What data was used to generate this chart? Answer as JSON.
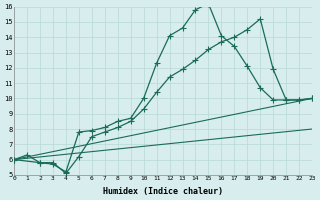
{
  "xlabel": "Humidex (Indice chaleur)",
  "bg_color": "#d8eeee",
  "grid_color": "#b8d8d8",
  "line_color": "#1a6b5a",
  "xlim": [
    0,
    23
  ],
  "ylim": [
    5,
    16
  ],
  "xticks": [
    0,
    1,
    2,
    3,
    4,
    5,
    6,
    7,
    8,
    9,
    10,
    11,
    12,
    13,
    14,
    15,
    16,
    17,
    18,
    19,
    20,
    21,
    22,
    23
  ],
  "yticks": [
    5,
    6,
    7,
    8,
    9,
    10,
    11,
    12,
    13,
    14,
    15,
    16
  ],
  "line1_x": [
    0,
    1,
    2,
    3,
    4,
    5,
    6,
    7,
    8,
    9,
    10,
    11,
    12,
    13,
    14,
    15,
    16,
    17,
    18,
    19,
    20,
    21,
    22,
    23
  ],
  "line1_y": [
    6.0,
    6.3,
    5.8,
    5.7,
    5.2,
    7.8,
    7.9,
    8.1,
    8.5,
    8.7,
    10.0,
    12.3,
    14.1,
    14.6,
    15.8,
    16.2,
    14.1,
    13.4,
    12.1,
    10.7,
    9.9,
    9.9,
    9.9,
    10.0
  ],
  "line2_x": [
    0,
    2,
    3,
    4,
    5,
    6,
    7,
    8,
    9,
    10,
    11,
    12,
    13,
    14,
    15,
    16,
    17,
    18,
    19,
    20,
    21,
    22,
    23
  ],
  "line2_y": [
    6.0,
    5.8,
    5.8,
    5.1,
    6.2,
    7.5,
    7.8,
    8.1,
    8.5,
    9.3,
    10.4,
    11.4,
    11.9,
    12.5,
    13.2,
    13.7,
    14.0,
    14.5,
    15.2,
    11.9,
    9.9,
    9.9,
    10.0
  ],
  "line3_x": [
    0,
    23
  ],
  "line3_y": [
    6.0,
    10.0
  ],
  "line4_x": [
    0,
    23
  ],
  "line4_y": [
    6.0,
    8.0
  ]
}
